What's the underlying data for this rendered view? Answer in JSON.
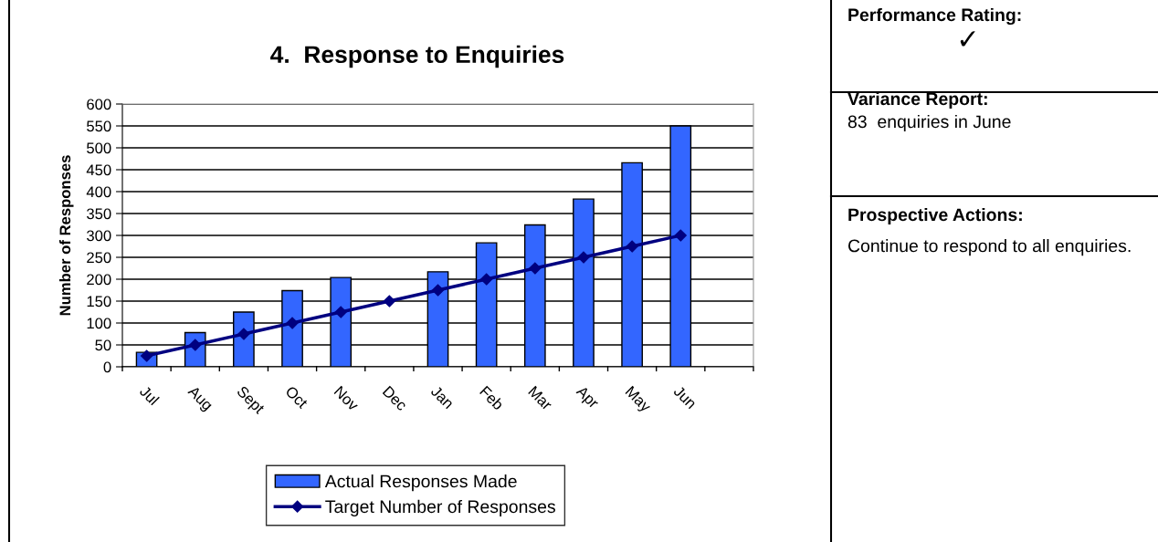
{
  "chart_data": {
    "type": "bar",
    "title": "4.  Response to Enquiries",
    "ylabel": "Number of Responses",
    "categories": [
      "Jul",
      "Aug",
      "Sept",
      "Oct",
      "Nov",
      "Dec",
      "Jan",
      "Feb",
      "Mar",
      "Apr",
      "May",
      "Jun",
      null
    ],
    "series": [
      {
        "name": "Actual Responses Made",
        "color": "#3366ff",
        "values": [
          33,
          78,
          125,
          174,
          204,
          null,
          217,
          283,
          324,
          383,
          466,
          550,
          null
        ]
      },
      {
        "name": "Target Number of Responses",
        "type": "line",
        "color": "#000080",
        "marker": "diamond",
        "values": [
          25,
          50,
          75,
          100,
          125,
          150,
          175,
          200,
          225,
          250,
          275,
          300,
          null
        ]
      }
    ],
    "ylim": [
      0,
      600
    ],
    "yticks": [
      0,
      50,
      100,
      150,
      200,
      250,
      300,
      350,
      400,
      450,
      500,
      550,
      600
    ],
    "grid": "y",
    "legend": "bottom",
    "annotations": [
      "Performance Rating:",
      "✓",
      "Variance Report:",
      "83  enquiries in June",
      "Prospective Actions:",
      "Continue to respond to all enquiries."
    ]
  }
}
